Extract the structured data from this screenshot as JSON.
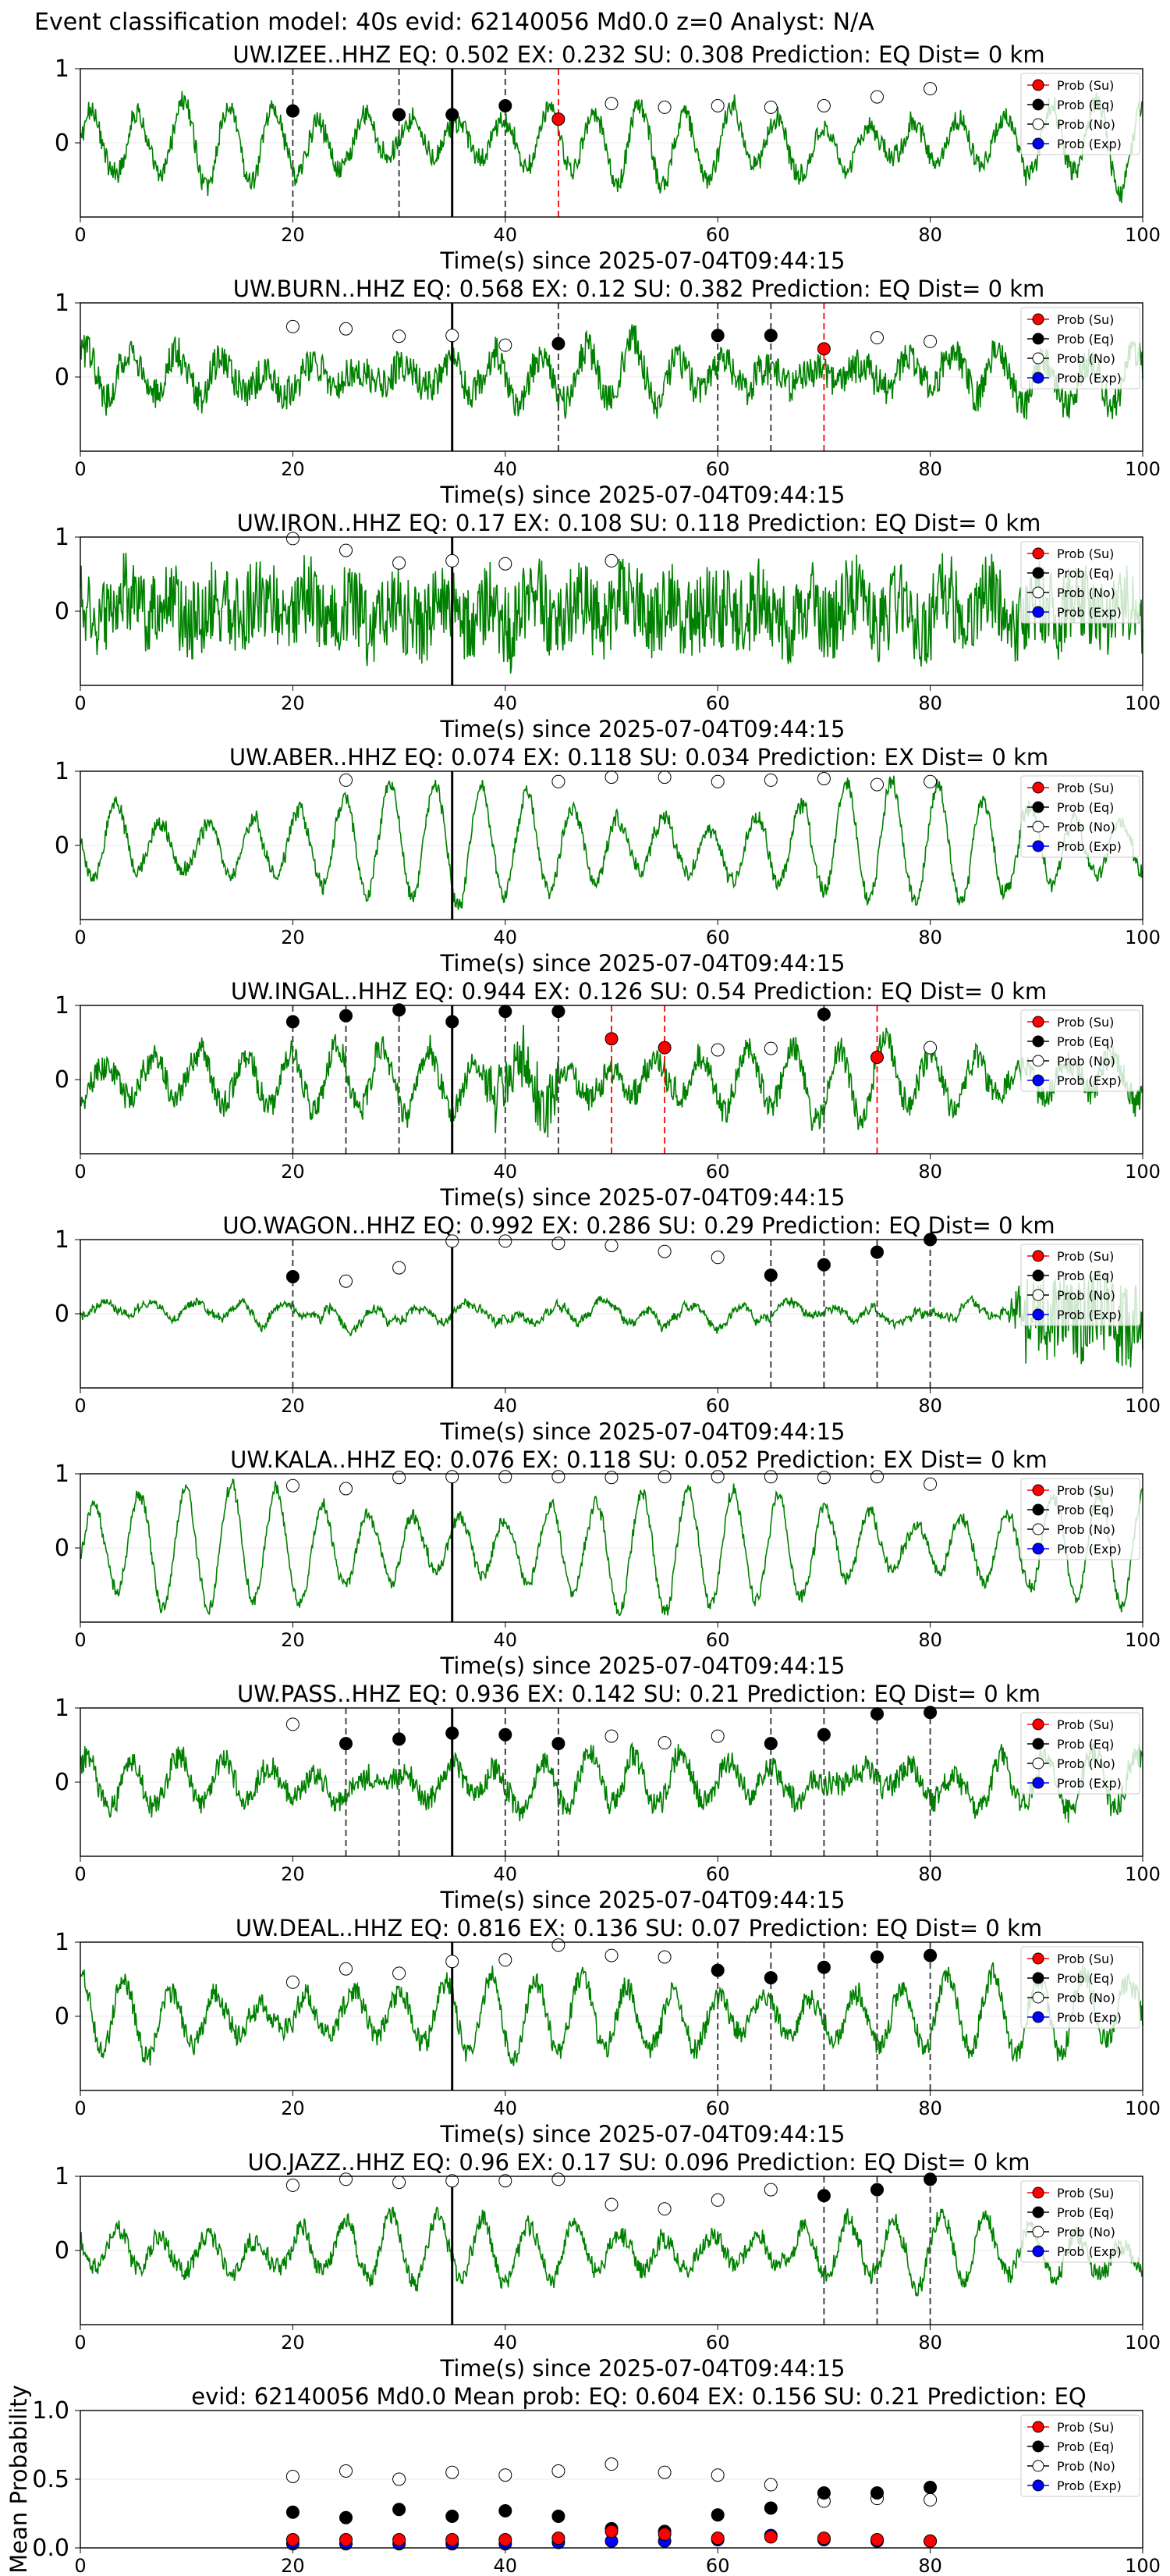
{
  "suptitle": "Event classification model: 40s evid: 62140056 Md0.0 z=0 Analyst: N/A",
  "xlabel": "Time(s) since 2025-07-04T09:44:15",
  "legend_labels": [
    "Prob (Su)",
    "Prob (Eq)",
    "Prob (No)",
    "Prob (Exp)"
  ],
  "colors": {
    "waveform": "#008000",
    "su": "#ff0000",
    "eq": "#000000",
    "no": "#ffffff",
    "exp": "#0000ff",
    "onset": "#000000"
  },
  "mean_panel": {
    "title": "evid: 62140056   Md0.0   Mean prob:    EQ: 0.604  EX: 0.156  SU: 0.21   Prediction: EQ",
    "ylabel": "Mean Probability"
  },
  "chart_data": [
    {
      "type": "line",
      "title": "UW.IZEE..HHZ   EQ: 0.502  EX: 0.232  SU: 0.308   Prediction: EQ    Dist= 0 km",
      "xlim": [
        0,
        100
      ],
      "ylim": [
        -1,
        1
      ],
      "onset": 35,
      "eq": [
        [
          20,
          0.43
        ],
        [
          30,
          0.38
        ],
        [
          35,
          0.38
        ],
        [
          40,
          0.5
        ]
      ],
      "su": [
        [
          45,
          0.32
        ]
      ],
      "no": [
        [
          50,
          0.53
        ],
        [
          55,
          0.48
        ],
        [
          60,
          0.5
        ],
        [
          65,
          0.48
        ],
        [
          70,
          0.5
        ],
        [
          75,
          0.62
        ],
        [
          80,
          0.73
        ]
      ],
      "eq_lines": [
        20,
        30,
        40
      ],
      "su_lines": [
        45
      ]
    },
    {
      "type": "line",
      "title": "UW.BURN..HHZ   EQ: 0.568  EX: 0.12  SU: 0.382   Prediction: EQ    Dist= 0 km",
      "xlim": [
        0,
        100
      ],
      "ylim": [
        -1,
        1
      ],
      "onset": 35,
      "eq": [
        [
          45,
          0.45
        ],
        [
          60,
          0.56
        ],
        [
          65,
          0.56
        ]
      ],
      "su": [
        [
          70,
          0.38
        ]
      ],
      "no": [
        [
          20,
          0.68
        ],
        [
          25,
          0.65
        ],
        [
          30,
          0.55
        ],
        [
          35,
          0.56
        ],
        [
          40,
          0.43
        ],
        [
          75,
          0.53
        ],
        [
          80,
          0.48
        ]
      ],
      "eq_lines": [
        45,
        60,
        65
      ],
      "su_lines": [
        70
      ]
    },
    {
      "type": "line",
      "title": "UW.IRON..HHZ   EQ: 0.17  EX: 0.108  SU: 0.118   Prediction: EQ    Dist= 0 km",
      "xlim": [
        0,
        100
      ],
      "ylim": [
        -1,
        1
      ],
      "onset": 35,
      "eq": [],
      "su": [],
      "no": [
        [
          20,
          0.98
        ],
        [
          25,
          0.82
        ],
        [
          30,
          0.65
        ],
        [
          35,
          0.68
        ],
        [
          40,
          0.64
        ],
        [
          50,
          0.68
        ]
      ],
      "eq_lines": [],
      "su_lines": []
    },
    {
      "type": "line",
      "title": "UW.ABER..HHZ   EQ: 0.074  EX: 0.118  SU: 0.034   Prediction: EX    Dist= 0 km",
      "xlim": [
        0,
        100
      ],
      "ylim": [
        -1,
        1
      ],
      "onset": 35,
      "eq": [],
      "su": [],
      "no": [
        [
          25,
          0.88
        ],
        [
          45,
          0.86
        ],
        [
          50,
          0.92
        ],
        [
          55,
          0.92
        ],
        [
          60,
          0.86
        ],
        [
          65,
          0.88
        ],
        [
          70,
          0.9
        ],
        [
          75,
          0.82
        ],
        [
          80,
          0.86
        ]
      ],
      "eq_lines": [],
      "su_lines": []
    },
    {
      "type": "line",
      "title": "UW.INGAL..HHZ   EQ: 0.944  EX: 0.126  SU: 0.54   Prediction: EQ    Dist= 0 km",
      "xlim": [
        0,
        100
      ],
      "ylim": [
        -1,
        1
      ],
      "onset": 35,
      "eq": [
        [
          20,
          0.78
        ],
        [
          25,
          0.86
        ],
        [
          30,
          0.94
        ],
        [
          35,
          0.78
        ],
        [
          40,
          0.92
        ],
        [
          45,
          0.92
        ],
        [
          70,
          0.88
        ]
      ],
      "su": [
        [
          50,
          0.55
        ],
        [
          55,
          0.43
        ],
        [
          75,
          0.3
        ]
      ],
      "no": [
        [
          60,
          0.4
        ],
        [
          65,
          0.42
        ],
        [
          80,
          0.43
        ]
      ],
      "eq_lines": [
        20,
        25,
        30,
        40,
        45,
        70
      ],
      "su_lines": [
        50,
        55,
        75
      ]
    },
    {
      "type": "line",
      "title": "UO.WAGON..HHZ   EQ: 0.992  EX: 0.286  SU: 0.29   Prediction: EQ    Dist= 0 km",
      "xlim": [
        0,
        100
      ],
      "ylim": [
        -1,
        1
      ],
      "onset": 35,
      "eq": [
        [
          20,
          0.5
        ],
        [
          65,
          0.52
        ],
        [
          70,
          0.66
        ],
        [
          75,
          0.83
        ],
        [
          80,
          1.0
        ]
      ],
      "su": [],
      "no": [
        [
          25,
          0.44
        ],
        [
          30,
          0.62
        ],
        [
          35,
          0.98
        ],
        [
          40,
          0.98
        ],
        [
          45,
          0.95
        ],
        [
          50,
          0.92
        ],
        [
          55,
          0.84
        ],
        [
          60,
          0.76
        ]
      ],
      "eq_lines": [
        20,
        65,
        70,
        75,
        80
      ],
      "su_lines": []
    },
    {
      "type": "line",
      "title": "UW.KALA..HHZ   EQ: 0.076  EX: 0.118  SU: 0.052   Prediction: EX    Dist= 0 km",
      "xlim": [
        0,
        100
      ],
      "ylim": [
        -1,
        1
      ],
      "onset": 35,
      "eq": [],
      "su": [],
      "no": [
        [
          20,
          0.84
        ],
        [
          25,
          0.8
        ],
        [
          30,
          0.95
        ],
        [
          35,
          0.96
        ],
        [
          40,
          0.96
        ],
        [
          45,
          0.96
        ],
        [
          50,
          0.95
        ],
        [
          55,
          0.96
        ],
        [
          60,
          0.96
        ],
        [
          65,
          0.96
        ],
        [
          70,
          0.95
        ],
        [
          75,
          0.96
        ],
        [
          80,
          0.86
        ]
      ],
      "eq_lines": [],
      "su_lines": []
    },
    {
      "type": "line",
      "title": "UW.PASS..HHZ   EQ: 0.936  EX: 0.142  SU: 0.21   Prediction: EQ    Dist= 0 km",
      "xlim": [
        0,
        100
      ],
      "ylim": [
        -1,
        1
      ],
      "onset": 35,
      "eq": [
        [
          25,
          0.52
        ],
        [
          30,
          0.58
        ],
        [
          35,
          0.66
        ],
        [
          40,
          0.64
        ],
        [
          45,
          0.52
        ],
        [
          65,
          0.52
        ],
        [
          70,
          0.64
        ],
        [
          75,
          0.92
        ],
        [
          80,
          0.94
        ]
      ],
      "su": [],
      "no": [
        [
          20,
          0.78
        ],
        [
          50,
          0.62
        ],
        [
          55,
          0.53
        ],
        [
          60,
          0.62
        ]
      ],
      "eq_lines": [
        25,
        30,
        40,
        45,
        65,
        70,
        75,
        80
      ],
      "su_lines": []
    },
    {
      "type": "line",
      "title": "UW.DEAL..HHZ   EQ: 0.816  EX: 0.136  SU: 0.07   Prediction: EQ    Dist= 0 km",
      "xlim": [
        0,
        100
      ],
      "ylim": [
        -1,
        1
      ],
      "onset": 35,
      "eq": [
        [
          60,
          0.62
        ],
        [
          65,
          0.52
        ],
        [
          70,
          0.66
        ],
        [
          75,
          0.8
        ],
        [
          80,
          0.82
        ]
      ],
      "su": [],
      "no": [
        [
          20,
          0.46
        ],
        [
          25,
          0.64
        ],
        [
          30,
          0.58
        ],
        [
          35,
          0.74
        ],
        [
          40,
          0.76
        ],
        [
          45,
          0.96
        ],
        [
          50,
          0.82
        ],
        [
          55,
          0.8
        ]
      ],
      "eq_lines": [
        60,
        65,
        70,
        75,
        80
      ],
      "su_lines": []
    },
    {
      "type": "line",
      "title": "UO.JAZZ..HHZ   EQ: 0.96  EX: 0.17  SU: 0.096   Prediction: EQ    Dist= 0 km",
      "xlim": [
        0,
        100
      ],
      "ylim": [
        -1,
        1
      ],
      "onset": 35,
      "eq": [
        [
          70,
          0.74
        ],
        [
          75,
          0.82
        ],
        [
          80,
          0.96
        ]
      ],
      "su": [],
      "no": [
        [
          20,
          0.88
        ],
        [
          25,
          0.96
        ],
        [
          30,
          0.92
        ],
        [
          35,
          0.94
        ],
        [
          40,
          0.94
        ],
        [
          45,
          0.96
        ],
        [
          50,
          0.62
        ],
        [
          55,
          0.56
        ],
        [
          60,
          0.68
        ],
        [
          65,
          0.82
        ]
      ],
      "eq_lines": [
        70,
        75,
        80
      ],
      "su_lines": []
    },
    {
      "type": "scatter",
      "title": "evid: 62140056   Md0.0   Mean prob:    EQ: 0.604  EX: 0.156  SU: 0.21   Prediction: EQ",
      "xlim": [
        0,
        100
      ],
      "ylim": [
        0,
        1
      ],
      "x": [
        20,
        25,
        30,
        35,
        40,
        45,
        50,
        55,
        60,
        65,
        70,
        75,
        80
      ],
      "series": [
        {
          "name": "Prob (Su)",
          "values": [
            0.06,
            0.06,
            0.06,
            0.06,
            0.06,
            0.07,
            0.12,
            0.1,
            0.07,
            0.08,
            0.07,
            0.06,
            0.05
          ]
        },
        {
          "name": "Prob (Eq)",
          "values": [
            0.26,
            0.22,
            0.28,
            0.23,
            0.27,
            0.23,
            0.14,
            0.12,
            0.24,
            0.29,
            0.4,
            0.4,
            0.44
          ]
        },
        {
          "name": "Prob (No)",
          "values": [
            0.52,
            0.56,
            0.5,
            0.55,
            0.53,
            0.56,
            0.61,
            0.55,
            0.53,
            0.46,
            0.34,
            0.36,
            0.35
          ]
        },
        {
          "name": "Prob (Exp)",
          "values": [
            0.03,
            0.03,
            0.03,
            0.03,
            0.03,
            0.04,
            0.05,
            0.05,
            0.06,
            0.09,
            0.06,
            0.05,
            0.05
          ]
        }
      ]
    }
  ]
}
